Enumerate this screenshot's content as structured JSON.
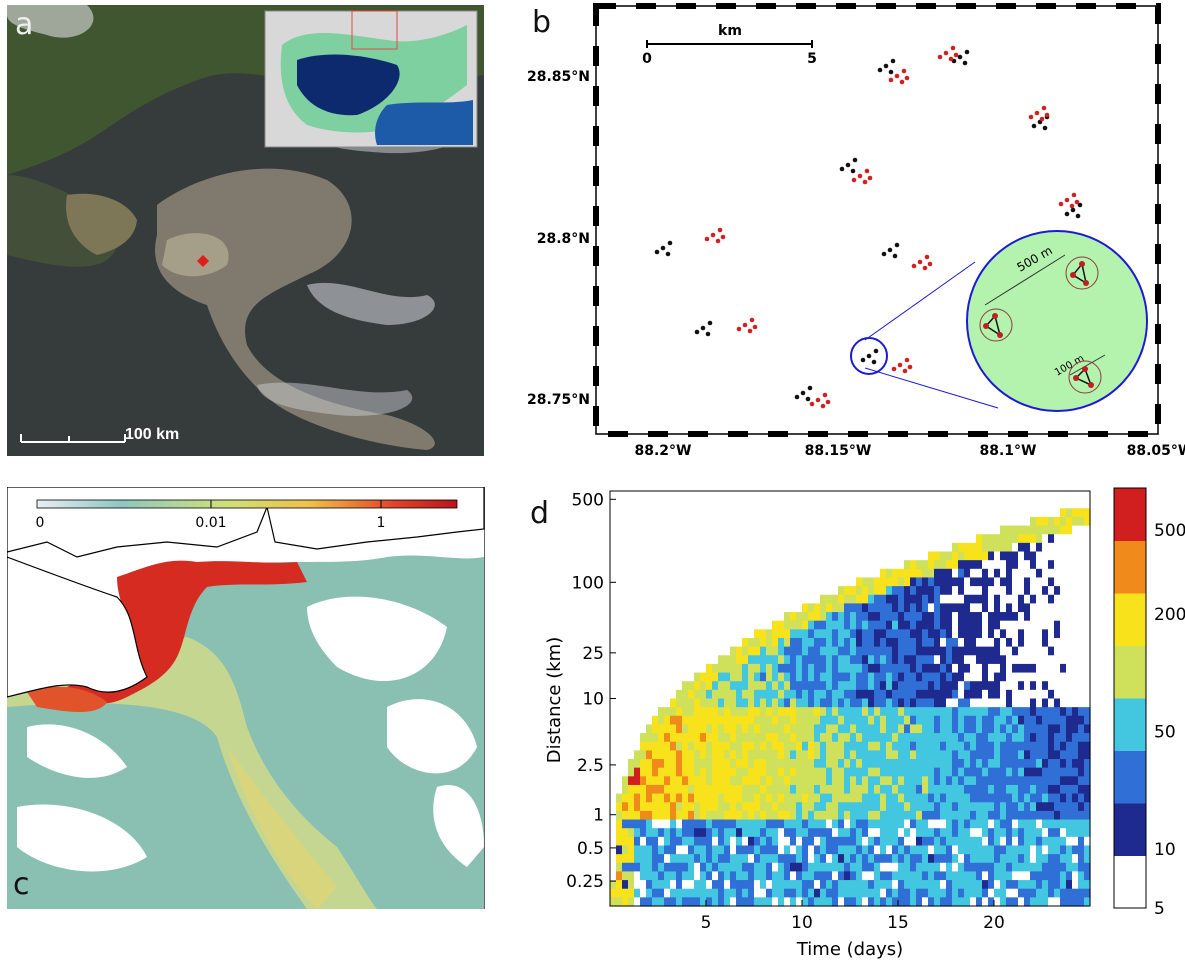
{
  "panel_a": {
    "label": "a",
    "scale_bar": "100 km",
    "colors": {
      "sea": "#3a3f3e",
      "land": "#3f5a32",
      "slick": "#a49d88",
      "marker": "#e21b1b"
    }
  },
  "panel_b": {
    "label": "b",
    "scale_title": "km",
    "scale_min": "0",
    "scale_max": "5",
    "inset_scale_large": "500 m",
    "inset_scale_small": "100 m",
    "y_ticks": [
      "28.85°N",
      "28.8°N",
      "28.75°N"
    ],
    "x_ticks": [
      "88.2°W",
      "88.15°W",
      "88.1°W",
      "88.05°W"
    ],
    "colors": {
      "group_a": "#111111",
      "group_b": "#d41f1f",
      "inset_fill": "#b3f3ae",
      "inset_stroke": "#1b1bd6"
    }
  },
  "panel_c": {
    "label": "c",
    "colorbar_ticks": [
      "0",
      "0.01",
      "1"
    ],
    "colors": {
      "low": "#8ec7c0",
      "mid": "#e6de7a",
      "high": "#d71f1f"
    }
  },
  "chart_data": {
    "type": "heatmap",
    "xlabel": "Time (days)",
    "ylabel": "Distance (km)",
    "x_ticks": [
      5,
      10,
      15,
      20
    ],
    "y_ticks": [
      "500",
      "100",
      "25",
      "10",
      "2.5",
      "1",
      "0.5",
      "0.25"
    ],
    "y_scale": "log",
    "colorbar": {
      "ticks": [
        "500",
        "200",
        "50",
        "10",
        "5"
      ],
      "scale": "log",
      "colors": [
        "#ffffff",
        "#1f2a8f",
        "#2f6fd6",
        "#43c6e0",
        "#cfe05a",
        "#f7e21c",
        "#f08a1a",
        "#d11f1f"
      ]
    }
  }
}
